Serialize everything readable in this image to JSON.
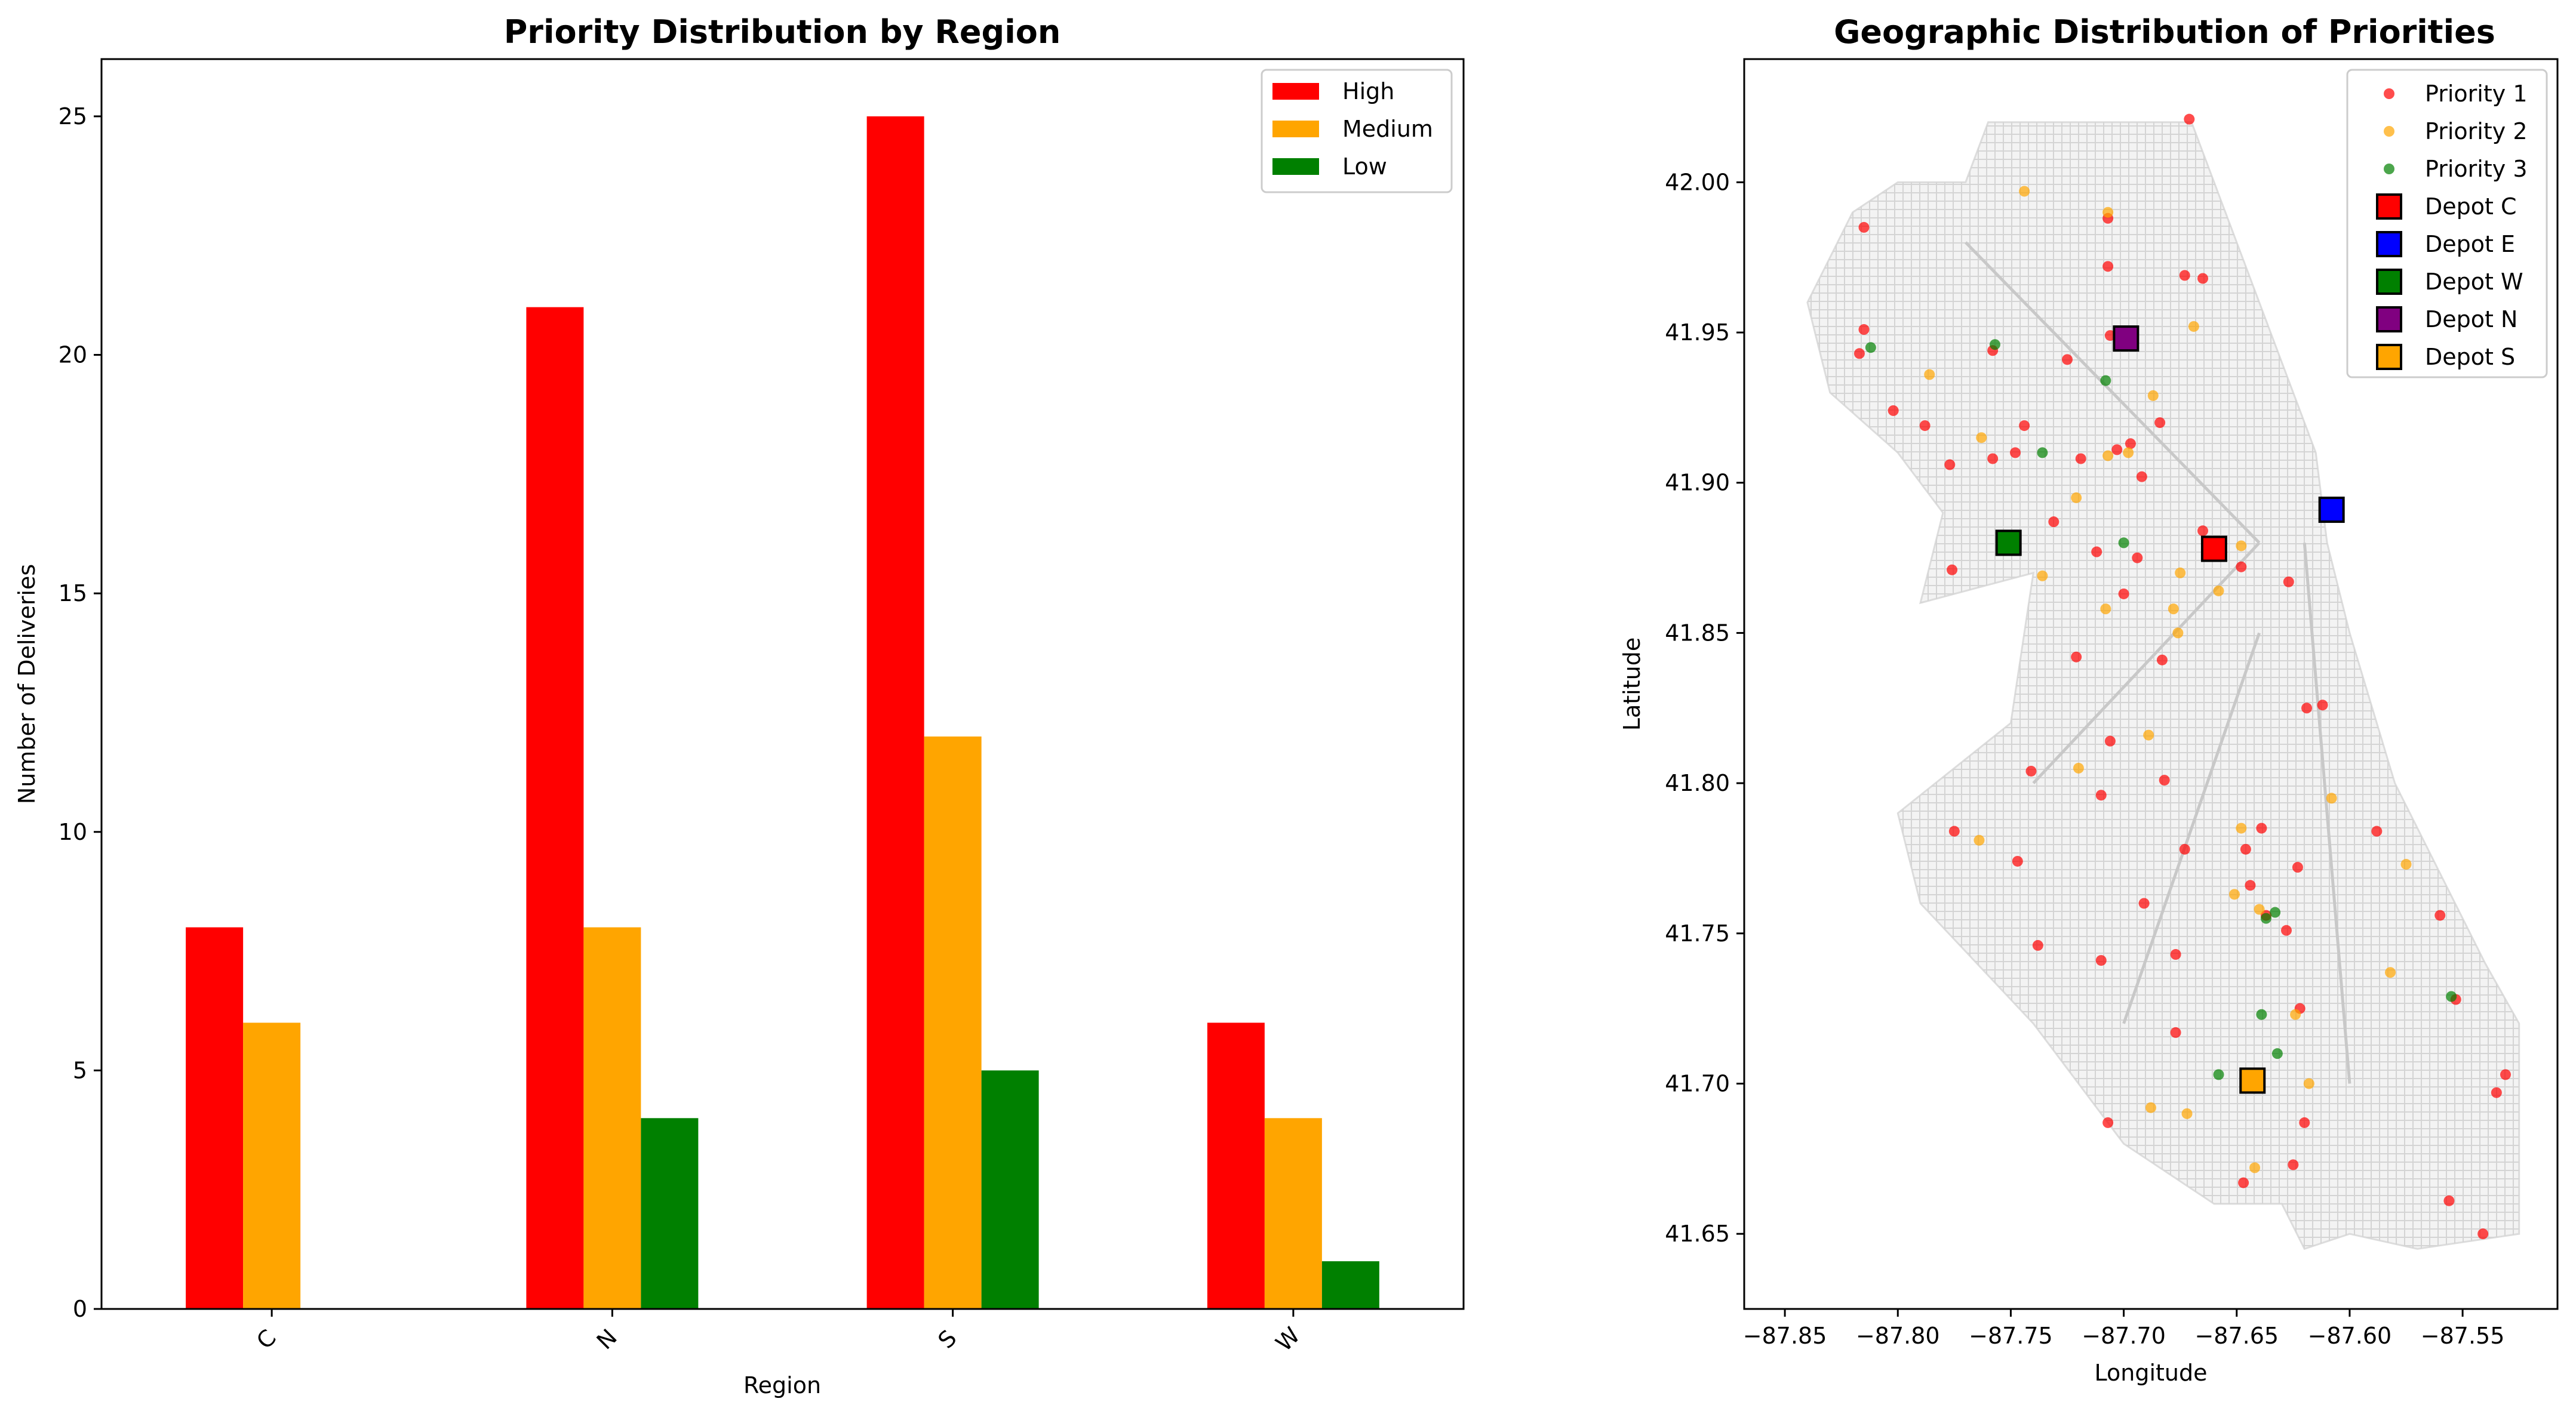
{
  "chart_data": [
    {
      "type": "bar",
      "title": "Priority Distribution by Region",
      "xlabel": "Region",
      "ylabel": "Number of Deliveries",
      "categories": [
        "C",
        "N",
        "S",
        "W"
      ],
      "ylim": [
        0,
        26.2
      ],
      "yticks": [
        "0",
        "5",
        "10",
        "15",
        "20",
        "25"
      ],
      "series": [
        {
          "name": "High",
          "color": "#ff0000",
          "values": [
            8,
            21,
            25,
            6
          ]
        },
        {
          "name": "Medium",
          "color": "#ffa500",
          "values": [
            6,
            8,
            12,
            4
          ]
        },
        {
          "name": "Low",
          "color": "#008000",
          "values": [
            0,
            4,
            5,
            1
          ]
        }
      ],
      "legend": "top-right",
      "grid": false
    },
    {
      "type": "scatter",
      "title": "Geographic Distribution of Priorities",
      "xlabel": "Longitude",
      "ylabel": "Latitude",
      "xlim": [
        -87.868,
        -87.508
      ],
      "ylim": [
        41.625,
        42.041
      ],
      "xticks": [
        "−87.85",
        "−87.80",
        "−87.75",
        "−87.70",
        "−87.65",
        "−87.60",
        "−87.55"
      ],
      "yticks": [
        "41.65",
        "41.70",
        "41.75",
        "41.80",
        "41.85",
        "41.90",
        "41.95",
        "42.00"
      ],
      "legend": "top-right",
      "grid": false,
      "series": [
        {
          "name": "Priority 1",
          "color": "#ff0000",
          "points": [
            [
              -87.815,
              41.985
            ],
            [
              -87.815,
              41.951
            ],
            [
              -87.817,
              41.943
            ],
            [
              -87.802,
              41.924
            ],
            [
              -87.788,
              41.919
            ],
            [
              -87.777,
              41.906
            ],
            [
              -87.758,
              41.944
            ],
            [
              -87.748,
              41.91
            ],
            [
              -87.758,
              41.908
            ],
            [
              -87.731,
              41.887
            ],
            [
              -87.744,
              41.919
            ],
            [
              -87.725,
              41.941
            ],
            [
              -87.719,
              41.908
            ],
            [
              -87.707,
              41.988
            ],
            [
              -87.707,
              41.972
            ],
            [
              -87.673,
              41.969
            ],
            [
              -87.671,
              42.021
            ],
            [
              -87.665,
              41.968
            ],
            [
              -87.706,
              41.949
            ],
            [
              -87.697,
              41.913
            ],
            [
              -87.703,
              41.911
            ],
            [
              -87.684,
              41.92
            ],
            [
              -87.692,
              41.902
            ],
            [
              -87.712,
              41.877
            ],
            [
              -87.694,
              41.875
            ],
            [
              -87.7,
              41.863
            ],
            [
              -87.683,
              41.841
            ],
            [
              -87.721,
              41.842
            ],
            [
              -87.665,
              41.884
            ],
            [
              -87.648,
              41.872
            ],
            [
              -87.627,
              41.867
            ],
            [
              -87.776,
              41.871
            ],
            [
              -87.619,
              41.825
            ],
            [
              -87.612,
              41.826
            ],
            [
              -87.741,
              41.804
            ],
            [
              -87.706,
              41.814
            ],
            [
              -87.71,
              41.796
            ],
            [
              -87.682,
              41.801
            ],
            [
              -87.673,
              41.778
            ],
            [
              -87.691,
              41.76
            ],
            [
              -87.775,
              41.784
            ],
            [
              -87.639,
              41.785
            ],
            [
              -87.646,
              41.778
            ],
            [
              -87.644,
              41.766
            ],
            [
              -87.623,
              41.772
            ],
            [
              -87.588,
              41.784
            ],
            [
              -87.637,
              41.756
            ],
            [
              -87.628,
              41.751
            ],
            [
              -87.56,
              41.756
            ],
            [
              -87.747,
              41.774
            ],
            [
              -87.738,
              41.746
            ],
            [
              -87.71,
              41.741
            ],
            [
              -87.677,
              41.743
            ],
            [
              -87.677,
              41.717
            ],
            [
              -87.622,
              41.725
            ],
            [
              -87.553,
              41.728
            ],
            [
              -87.531,
              41.703
            ],
            [
              -87.535,
              41.697
            ],
            [
              -87.62,
              41.687
            ],
            [
              -87.647,
              41.667
            ],
            [
              -87.625,
              41.673
            ],
            [
              -87.707,
              41.687
            ],
            [
              -87.556,
              41.661
            ],
            [
              -87.541,
              41.65
            ]
          ]
        },
        {
          "name": "Priority 2",
          "color": "#ffa500",
          "points": [
            [
              -87.744,
              41.997
            ],
            [
              -87.707,
              41.99
            ],
            [
              -87.786,
              41.936
            ],
            [
              -87.763,
              41.915
            ],
            [
              -87.707,
              41.909
            ],
            [
              -87.698,
              41.91
            ],
            [
              -87.721,
              41.895
            ],
            [
              -87.687,
              41.929
            ],
            [
              -87.669,
              41.952
            ],
            [
              -87.736,
              41.869
            ],
            [
              -87.708,
              41.858
            ],
            [
              -87.675,
              41.87
            ],
            [
              -87.678,
              41.858
            ],
            [
              -87.658,
              41.864
            ],
            [
              -87.676,
              41.85
            ],
            [
              -87.648,
              41.879
            ],
            [
              -87.689,
              41.816
            ],
            [
              -87.72,
              41.805
            ],
            [
              -87.764,
              41.781
            ],
            [
              -87.648,
              41.785
            ],
            [
              -87.608,
              41.795
            ],
            [
              -87.575,
              41.773
            ],
            [
              -87.651,
              41.763
            ],
            [
              -87.64,
              41.758
            ],
            [
              -87.582,
              41.737
            ],
            [
              -87.624,
              41.723
            ],
            [
              -87.618,
              41.7
            ],
            [
              -87.688,
              41.692
            ],
            [
              -87.672,
              41.69
            ],
            [
              -87.642,
              41.672
            ]
          ]
        },
        {
          "name": "Priority 3",
          "color": "#008000",
          "points": [
            [
              -87.812,
              41.945
            ],
            [
              -87.757,
              41.946
            ],
            [
              -87.736,
              41.91
            ],
            [
              -87.708,
              41.934
            ],
            [
              -87.7,
              41.88
            ],
            [
              -87.639,
              41.723
            ],
            [
              -87.637,
              41.755
            ],
            [
              -87.633,
              41.757
            ],
            [
              -87.632,
              41.71
            ],
            [
              -87.658,
              41.703
            ],
            [
              -87.555,
              41.729
            ]
          ]
        },
        {
          "name": "Depot C",
          "color": "#ff0000",
          "marker": "square",
          "points": [
            [
              -87.66,
              41.878
            ]
          ]
        },
        {
          "name": "Depot E",
          "color": "#0000ff",
          "marker": "square",
          "points": [
            [
              -87.608,
              41.891
            ]
          ]
        },
        {
          "name": "Depot W",
          "color": "#008000",
          "marker": "square",
          "points": [
            [
              -87.751,
              41.88
            ]
          ]
        },
        {
          "name": "Depot N",
          "color": "#800080",
          "marker": "square",
          "points": [
            [
              -87.699,
              41.948
            ]
          ]
        },
        {
          "name": "Depot S",
          "color": "#ffa500",
          "marker": "square",
          "points": [
            [
              -87.643,
              41.701
            ]
          ]
        }
      ]
    }
  ]
}
